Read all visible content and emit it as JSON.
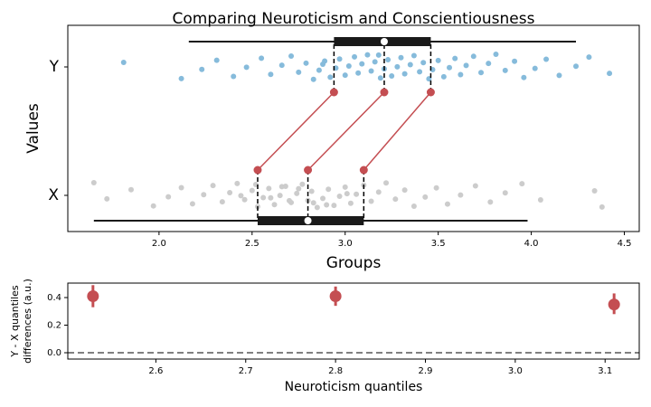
{
  "chart_data": [
    {
      "type": "strip",
      "title": "Comparing Neuroticism and Conscientiousness",
      "xlabel": "Groups",
      "ylabel": "Values",
      "categories": [
        "X",
        "Y"
      ],
      "xlim": [
        1.51,
        4.58
      ],
      "xticks": [
        {
          "value": 2,
          "label": "2.0"
        },
        2.5,
        {
          "value": 3,
          "label": "3.0"
        },
        3.5,
        {
          "value": 4,
          "label": "4.0"
        },
        4.5
      ],
      "series": [
        {
          "color": "#cccccc",
          "values": [
            1.65,
            1.72,
            1.85,
            1.97,
            2.05,
            2.12,
            2.18,
            2.24,
            2.29,
            2.34,
            2.38,
            2.42,
            2.46,
            2.5,
            2.53,
            2.56,
            2.59,
            2.62,
            2.65,
            2.68,
            2.71,
            2.74,
            2.77,
            2.8,
            2.82,
            2.85,
            2.88,
            2.91,
            2.94,
            2.97,
            3.0,
            3.03,
            3.06,
            3.1,
            3.14,
            3.18,
            3.22,
            3.27,
            3.32,
            3.37,
            3.43,
            3.49,
            3.55,
            3.62,
            3.7,
            3.78,
            3.86,
            3.95,
            4.05,
            4.34,
            4.38,
            2.6,
            2.75,
            2.9,
            2.44,
            2.66,
            2.83,
            3.01,
            2.52,
            2.7
          ],
          "box": {
            "whislo": 1.65,
            "q1": 2.53,
            "med": 2.8,
            "q3": 3.1,
            "whishi": 3.98
          },
          "quantiles": [
            2.53,
            2.8,
            3.1
          ]
        },
        {
          "color": "#86bbdb",
          "values": [
            1.81,
            2.12,
            2.23,
            2.31,
            2.4,
            2.47,
            2.55,
            2.6,
            2.66,
            2.71,
            2.75,
            2.79,
            2.83,
            2.86,
            2.89,
            2.92,
            2.95,
            2.97,
            3.0,
            3.02,
            3.05,
            3.07,
            3.09,
            3.12,
            3.14,
            3.16,
            3.19,
            3.21,
            3.23,
            3.25,
            3.28,
            3.3,
            3.32,
            3.35,
            3.37,
            3.4,
            3.42,
            3.45,
            3.47,
            3.5,
            3.53,
            3.56,
            3.59,
            3.62,
            3.65,
            3.69,
            3.73,
            3.77,
            3.81,
            3.86,
            3.91,
            3.96,
            4.02,
            4.08,
            4.15,
            4.24,
            4.31,
            4.42,
            2.88,
            3.18
          ],
          "box": {
            "whislo": 2.16,
            "q1": 2.94,
            "med": 3.21,
            "q3": 3.46,
            "whishi": 4.24
          },
          "quantiles": [
            2.94,
            3.21,
            3.46
          ]
        }
      ],
      "quantile_color": "#c44e52"
    },
    {
      "type": "errorbar",
      "xlabel": "Neuroticism quantiles",
      "ylabel": [
        "Y - X quantiles",
        "differences (a.u.)"
      ],
      "x": [
        2.53,
        2.8,
        3.11
      ],
      "values": [
        0.41,
        0.41,
        0.35
      ],
      "ci_low": [
        0.33,
        0.34,
        0.28
      ],
      "ci_high": [
        0.49,
        0.48,
        0.43
      ],
      "color": "#c44e52",
      "hline": 0,
      "xlim": [
        2.502,
        3.138
      ],
      "xticks": [
        2.6,
        2.7,
        2.8,
        2.9,
        {
          "value": 3,
          "label": "3.0"
        },
        3.1
      ],
      "ylim": [
        -0.046,
        0.505
      ],
      "yticks": [
        {
          "value": 0,
          "label": "0.0"
        },
        0.2,
        0.4
      ]
    }
  ]
}
